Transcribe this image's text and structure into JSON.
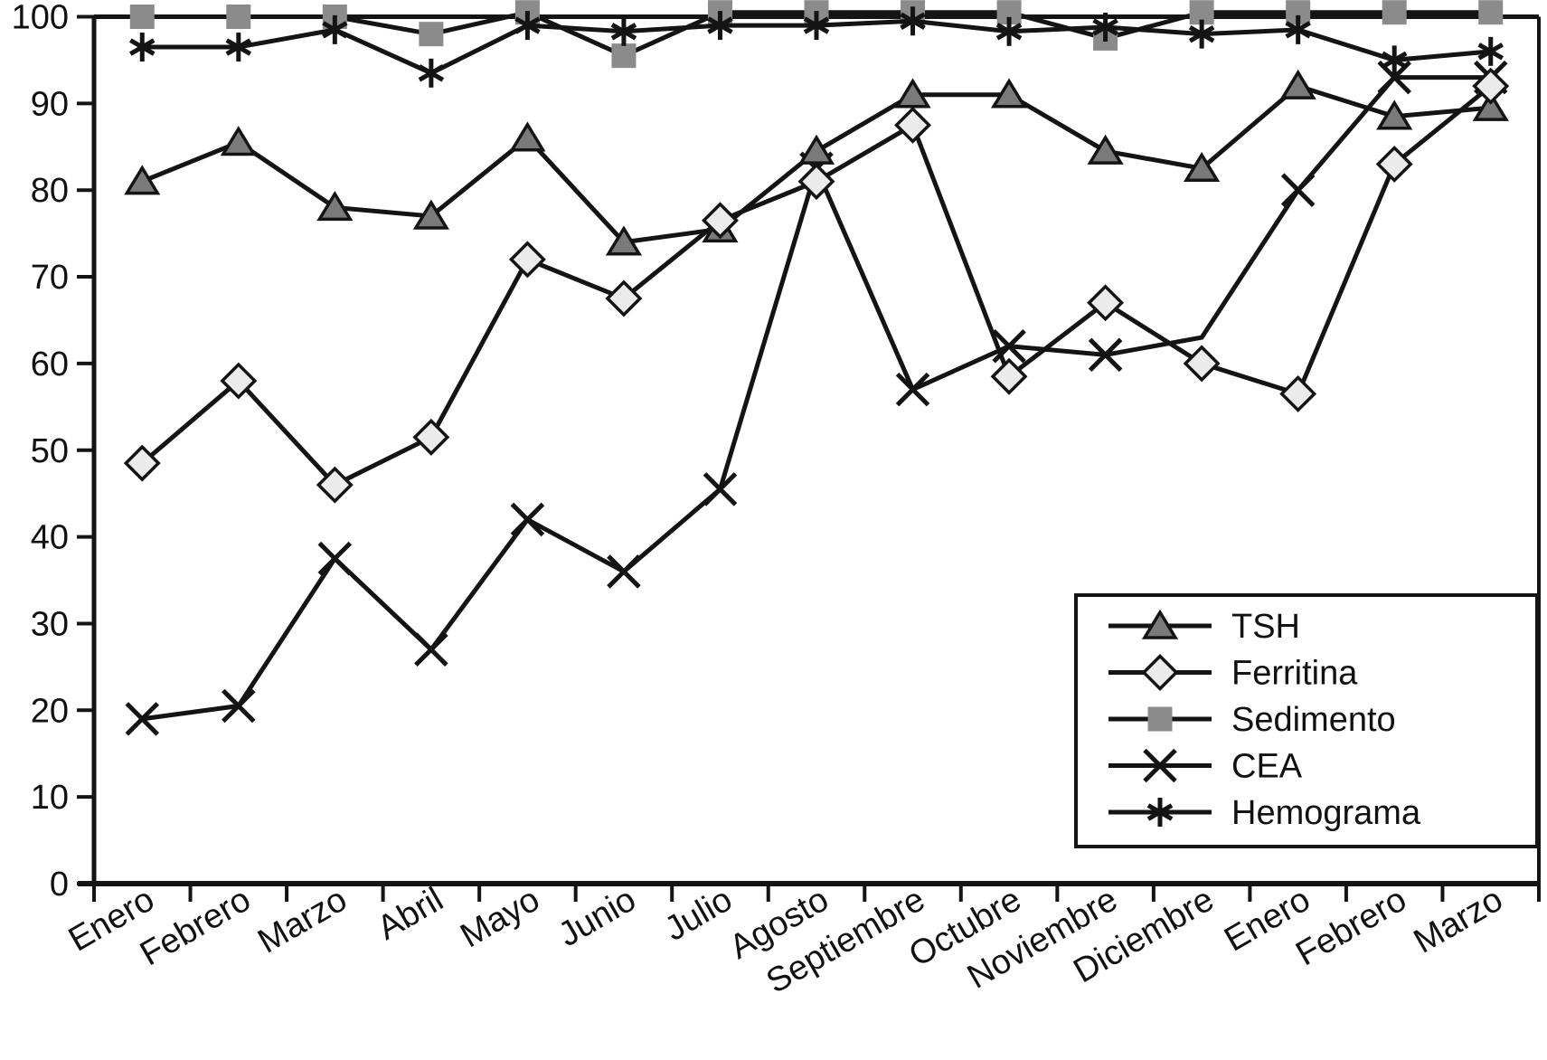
{
  "figure": {
    "background": "#ffffff",
    "line_color": "#141414",
    "axis_color": "#141414"
  },
  "chart_data": {
    "type": "line",
    "title": "",
    "xlabel": "",
    "ylabel": "",
    "categories": [
      "Enero",
      "Febrero",
      "Marzo",
      "Abril",
      "Mayo",
      "Junio",
      "Julio",
      "Agosto",
      "Septiembre",
      "Octubre",
      "Noviembre",
      "Diciembre",
      "Enero",
      "Febrero",
      "Marzo"
    ],
    "yticks": [
      "0",
      "10",
      "20",
      "30",
      "40",
      "50",
      "60",
      "70",
      "80",
      "90",
      "100"
    ],
    "ylim": [
      0,
      100
    ],
    "grid": false,
    "x_tick_label_rotation": -30,
    "series": [
      {
        "name": "TSH",
        "marker": "triangle",
        "marker_fill": "#7a7a7a",
        "values": [
          81,
          85.5,
          78,
          77,
          86,
          74,
          75.5,
          84.5,
          91,
          91,
          84.5,
          82.5,
          92,
          88.5,
          89.5
        ]
      },
      {
        "name": "Ferritina",
        "marker": "diamond",
        "marker_fill": "#ebebeb",
        "values": [
          48.5,
          58,
          46,
          51.5,
          72,
          67.5,
          76.5,
          81,
          87.5,
          58.5,
          67,
          60,
          56.5,
          83,
          92
        ]
      },
      {
        "name": "Sedimento",
        "marker": "square",
        "marker_fill": "#8b8b8b",
        "values": [
          100,
          100,
          100,
          98,
          100.5,
          95.5,
          100.5,
          100.5,
          100.5,
          100.5,
          97.5,
          100.5,
          100.5,
          100.5,
          100.5
        ]
      },
      {
        "name": "CEA",
        "marker": "x",
        "marker_fill": "#141414",
        "values": [
          19,
          20.5,
          37.5,
          27,
          42,
          36,
          45.5,
          82.5,
          57,
          62,
          61,
          63,
          80,
          93,
          93
        ],
        "marker_skip": [
          11
        ]
      },
      {
        "name": "Hemograma",
        "marker": "asterisk",
        "marker_fill": "#141414",
        "values": [
          96.5,
          96.5,
          98.5,
          93.5,
          99,
          98.3,
          99,
          99,
          99.5,
          98.3,
          98.8,
          98,
          98.5,
          95,
          96
        ]
      }
    ],
    "draw_order": [
      "CEA",
      "TSH",
      "Ferritina",
      "Sedimento",
      "Hemograma"
    ],
    "legend": {
      "position": "inside-bottom-right",
      "entries": [
        "TSH",
        "Ferritina",
        "Sedimento",
        "CEA",
        "Hemograma"
      ]
    }
  }
}
